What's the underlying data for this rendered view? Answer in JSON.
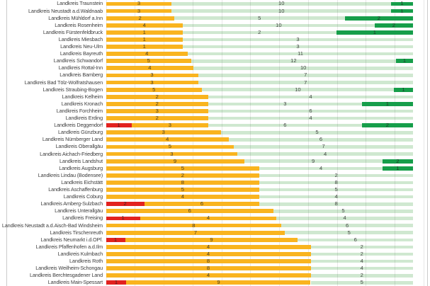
{
  "chart_data": {
    "type": "bar",
    "subtype": "horizontal-100pct-stacked",
    "title": "",
    "xlabel": "",
    "ylabel": "",
    "grid": true,
    "legend_position": "none",
    "axis_note": "bars normalized to full width; counts shown as labels centered in each segment",
    "segment_order": [
      "red",
      "orange",
      "light_green",
      "dark_green"
    ],
    "colors": {
      "red": "#E2221F",
      "orange": "#F9B41F",
      "light_green": "#CFE8D0",
      "dark_green": "#169E4A",
      "gridline": "#dddddd",
      "frame_border": "#cbcbcb",
      "label_text": "#3d3d3d",
      "value_text": "#2a2a2a"
    },
    "rows": [
      {
        "label": "Landkreis Traunstein",
        "red": 0,
        "orange": 3,
        "light_green": 10,
        "dark_green": 1
      },
      {
        "label": "Landkreis Neustadt a.d.Waldnaab",
        "red": 0,
        "orange": 3,
        "light_green": 10,
        "dark_green": 1
      },
      {
        "label": "Landkreis Mühldorf a.Inn",
        "red": 0,
        "orange": 2,
        "light_green": 5,
        "dark_green": 2
      },
      {
        "label": "Landkreis Rosenheim",
        "red": 0,
        "orange": 4,
        "light_green": 10,
        "dark_green": 2
      },
      {
        "label": "Landkreis Fürstenfeldbruck",
        "red": 0,
        "orange": 1,
        "light_green": 2,
        "dark_green": 1
      },
      {
        "label": "Landkreis Miesbach",
        "red": 0,
        "orange": 1,
        "light_green": 3,
        "dark_green": 0
      },
      {
        "label": "Landkreis Neu-Ulm",
        "red": 0,
        "orange": 1,
        "light_green": 3,
        "dark_green": 0
      },
      {
        "label": "Landkreis Bayreuth",
        "red": 0,
        "orange": 4,
        "light_green": 11,
        "dark_green": 0
      },
      {
        "label": "Landkreis Schwandorf",
        "red": 0,
        "orange": 5,
        "light_green": 12,
        "dark_green": 1
      },
      {
        "label": "Landkreis Rottal-Inn",
        "red": 0,
        "orange": 4,
        "light_green": 10,
        "dark_green": 0
      },
      {
        "label": "Landkreis Bamberg",
        "red": 0,
        "orange": 3,
        "light_green": 7,
        "dark_green": 0
      },
      {
        "label": "Landkreis Bad Tölz-Wolfratshausen",
        "red": 0,
        "orange": 3,
        "light_green": 7,
        "dark_green": 0
      },
      {
        "label": "Landkreis Straubing-Bogen",
        "red": 0,
        "orange": 5,
        "light_green": 10,
        "dark_green": 1
      },
      {
        "label": "Landkreis Kelheim",
        "red": 0,
        "orange": 2,
        "light_green": 4,
        "dark_green": 0
      },
      {
        "label": "Landkreis Kronach",
        "red": 0,
        "orange": 2,
        "light_green": 3,
        "dark_green": 1
      },
      {
        "label": "Landkreis Forchheim",
        "red": 0,
        "orange": 3,
        "light_green": 6,
        "dark_green": 0
      },
      {
        "label": "Landkreis Erding",
        "red": 0,
        "orange": 2,
        "light_green": 4,
        "dark_green": 0
      },
      {
        "label": "Landkreis Deggendorf",
        "red": 1,
        "orange": 3,
        "light_green": 6,
        "dark_green": 2
      },
      {
        "label": "Landkreis Günzburg",
        "red": 0,
        "orange": 3,
        "light_green": 5,
        "dark_green": 0
      },
      {
        "label": "Landkreis Nürnberger Land",
        "red": 0,
        "orange": 4,
        "light_green": 6,
        "dark_green": 0
      },
      {
        "label": "Landkreis Oberallgäu",
        "red": 0,
        "orange": 5,
        "light_green": 7,
        "dark_green": 0
      },
      {
        "label": "Landkreis Aichach-Friedberg",
        "red": 0,
        "orange": 3,
        "light_green": 4,
        "dark_green": 0
      },
      {
        "label": "Landkreis Landshut",
        "red": 0,
        "orange": 9,
        "light_green": 9,
        "dark_green": 2
      },
      {
        "label": "Landkreis Augsburg",
        "red": 0,
        "orange": 5,
        "light_green": 4,
        "dark_green": 1
      },
      {
        "label": "Landkreis Lindau (Bodensee)",
        "red": 0,
        "orange": 2,
        "light_green": 2,
        "dark_green": 0
      },
      {
        "label": "Landkreis Eichstätt",
        "red": 0,
        "orange": 8,
        "light_green": 8,
        "dark_green": 0
      },
      {
        "label": "Landkreis Aschaffenburg",
        "red": 0,
        "orange": 5,
        "light_green": 5,
        "dark_green": 0
      },
      {
        "label": "Landkreis Coburg",
        "red": 0,
        "orange": 4,
        "light_green": 4,
        "dark_green": 0
      },
      {
        "label": "Landkreis Amberg-Sulzbach",
        "red": 2,
        "orange": 6,
        "light_green": 8,
        "dark_green": 0
      },
      {
        "label": "Landkreis Unterallgäu",
        "red": 0,
        "orange": 6,
        "light_green": 5,
        "dark_green": 0
      },
      {
        "label": "Landkreis Freising",
        "red": 1,
        "orange": 4,
        "light_green": 4,
        "dark_green": 0
      },
      {
        "label": "Landkreis Neustadt a.d.Aisch-Bad Windsheim",
        "red": 0,
        "orange": 8,
        "light_green": 6,
        "dark_green": 0
      },
      {
        "label": "Landkreis Tirschenreuth",
        "red": 0,
        "orange": 7,
        "light_green": 5,
        "dark_green": 0
      },
      {
        "label": "Landkreis Neumarkt i.d.OPf.",
        "red": 1,
        "orange": 9,
        "light_green": 6,
        "dark_green": 0
      },
      {
        "label": "Landkreis Pfaffenhofen a.d.Ilm",
        "red": 0,
        "orange": 4,
        "light_green": 2,
        "dark_green": 0
      },
      {
        "label": "Landkreis Kulmbach",
        "red": 0,
        "orange": 4,
        "light_green": 2,
        "dark_green": 0
      },
      {
        "label": "Landkreis Roth",
        "red": 0,
        "orange": 8,
        "light_green": 4,
        "dark_green": 0
      },
      {
        "label": "Landkreis Weilheim-Schongau",
        "red": 0,
        "orange": 8,
        "light_green": 4,
        "dark_green": 0
      },
      {
        "label": "Landkreis Berchtesgadener Land",
        "red": 0,
        "orange": 4,
        "light_green": 2,
        "dark_green": 0
      },
      {
        "label": "Landkreis Main-Spessart",
        "red": 1,
        "orange": 9,
        "light_green": 5,
        "dark_green": 0
      }
    ]
  }
}
